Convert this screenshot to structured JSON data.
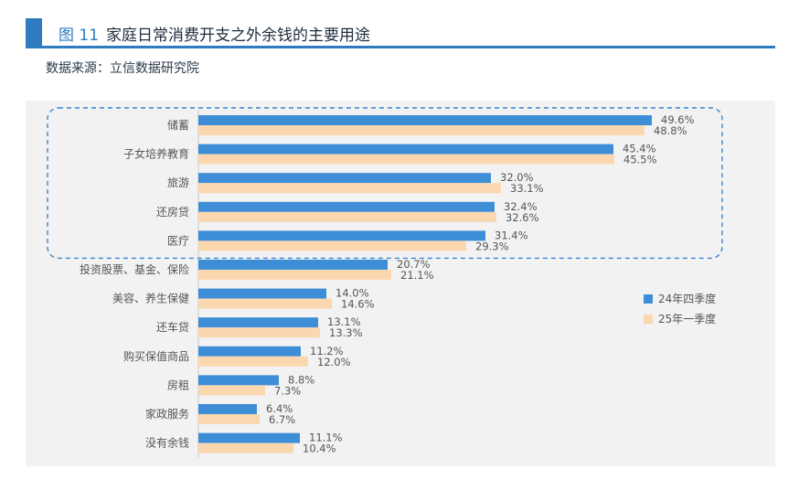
{
  "header": {
    "figure_number": "图 11",
    "title": "家庭日常消费开支之外余钱的主要用途",
    "source": "数据来源：立信数据研究院"
  },
  "colors": {
    "accent": "#2f7bbf",
    "series_1": "#3d8ed6",
    "series_2": "#fbd7b0",
    "highlight_box": "#3a86d0"
  },
  "chart_data": {
    "type": "bar",
    "orientation": "horizontal",
    "title": "家庭日常消费开支之外余钱的主要用途",
    "categories": [
      "储蓄",
      "子女培养教育",
      "旅游",
      "还房贷",
      "医疗",
      "投资股票、基金、保险",
      "美容、养生保健",
      "还车贷",
      "购买保值商品",
      "房租",
      "家政服务",
      "没有余钱"
    ],
    "series": [
      {
        "name": "24年四季度",
        "values": [
          49.6,
          45.4,
          32.0,
          32.4,
          31.4,
          20.7,
          14.0,
          13.1,
          11.2,
          8.8,
          6.4,
          11.1
        ]
      },
      {
        "name": "25年一季度",
        "values": [
          48.8,
          45.5,
          33.1,
          32.6,
          29.3,
          21.1,
          14.6,
          13.3,
          12.0,
          7.3,
          6.7,
          10.4
        ]
      }
    ],
    "value_labels_1": [
      "49.6%",
      "45.4%",
      "32.0%",
      "32.4%",
      "31.4%",
      "20.7%",
      "14.0%",
      "13.1%",
      "11.2%",
      "8.8%",
      "6.4%",
      "11.1%"
    ],
    "value_labels_2": [
      "48.8%",
      "45.5%",
      "33.1%",
      "32.6%",
      "29.3%",
      "21.1%",
      "14.6%",
      "13.3%",
      "12.0%",
      "7.3%",
      "6.7%",
      "10.4%"
    ],
    "xlim": [
      0,
      55
    ],
    "unit": "%",
    "legend_position": "right",
    "highlight_categories": 5,
    "grid": false
  }
}
